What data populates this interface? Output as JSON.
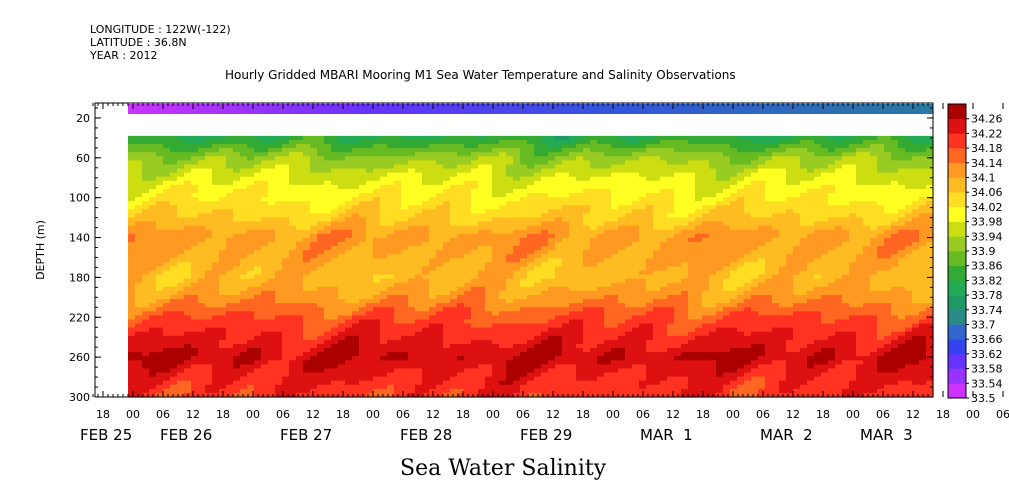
{
  "header": {
    "longitude": "LONGITUDE : 122W(-122)",
    "latitude": "LATITUDE : 36.8N",
    "year": "YEAR : 2012"
  },
  "chart_data": {
    "type": "heatmap",
    "title": "Hourly Gridded MBARI Mooring M1 Sea Water Temperature and Salinity Observations",
    "xlabel": "Sea Water Salinity",
    "ylabel": "DEPTH (m)",
    "y_ticks": [
      20,
      60,
      100,
      140,
      180,
      220,
      260,
      300
    ],
    "ylim": [
      300,
      5
    ],
    "x_hour_ticks": [
      "18",
      "00",
      "06",
      "12",
      "18",
      "00",
      "06",
      "12",
      "18",
      "00",
      "06",
      "12",
      "18",
      "00",
      "06",
      "12",
      "18",
      "00",
      "06",
      "12",
      "18",
      "00",
      "06",
      "12",
      "18",
      "00",
      "06",
      "12",
      "18",
      "00",
      "06",
      "12"
    ],
    "x_date_labels": [
      "FEB 25",
      "FEB 26",
      "FEB 27",
      "FEB 28",
      "FEB 29",
      "MAR  1",
      "MAR  2",
      "MAR  3"
    ],
    "colorbar_levels": [
      "33.5",
      "33.54",
      "33.58",
      "33.62",
      "33.66",
      "33.7",
      "33.74",
      "33.78",
      "33.82",
      "33.86",
      "33.9",
      "33.94",
      "33.98",
      "34.02",
      "34.06",
      "34.1",
      "34.14",
      "34.18",
      "34.22",
      "34.26"
    ],
    "colorbar_colors": [
      "#cc33ff",
      "#9933ff",
      "#6633ff",
      "#3344ee",
      "#3366cc",
      "#2a8a88",
      "#1f9966",
      "#22aa55",
      "#33aa33",
      "#66bb22",
      "#99cc22",
      "#ccdd11",
      "#ffff22",
      "#ffdd22",
      "#ffbb22",
      "#ff9922",
      "#ff6622",
      "#ff3322",
      "#dd1111",
      "#aa0000"
    ],
    "depth_levels": [
      10,
      40,
      60,
      80,
      100,
      120,
      140,
      160,
      180,
      200,
      220,
      240,
      260,
      280,
      300
    ],
    "depth_profile_salinity": [
      33.6,
      33.8,
      33.9,
      33.96,
      34.0,
      34.04,
      34.1,
      34.08,
      34.06,
      34.1,
      34.16,
      34.2,
      34.24,
      34.2,
      34.18
    ],
    "surface_salinity_trend": {
      "start": 33.5,
      "end": 33.64
    },
    "data_gap_depth_range_m": [
      15,
      38
    ]
  }
}
